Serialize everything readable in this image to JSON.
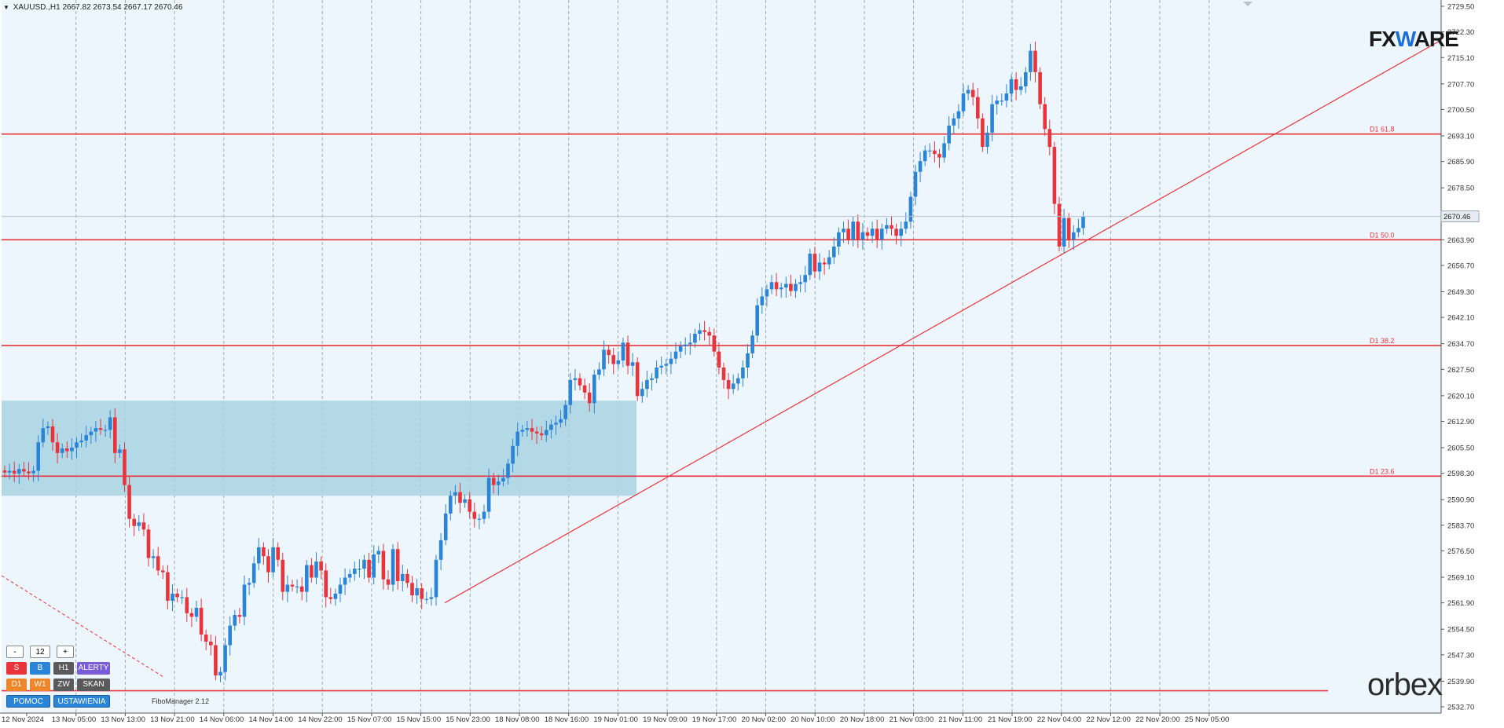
{
  "header": {
    "symbol": "XAUUSD.,H1",
    "ohlc": "2667.82 2673.54 2667.17 2670.46"
  },
  "brands": {
    "fxware_prefix": "FX",
    "fxware_w": "W",
    "fxware_suffix": "ARE",
    "orbex": "orbex"
  },
  "panel": {
    "minus": "-",
    "value": "12",
    "plus": "+",
    "s": "S",
    "b": "B",
    "h1": "H1",
    "alerty": "ALERTY",
    "d1": "D1",
    "w1": "W1",
    "zw": "ZW",
    "skan": "SKAN",
    "pomoc": "POMOC",
    "ustawienia": "USTAWIENIA",
    "fibomanager": "FiboManager 2.12"
  },
  "chart_data": {
    "type": "candlestick",
    "symbol": "XAUUSD.",
    "timeframe": "H1",
    "last_price": 2670.46,
    "ylim": [
      2532.7,
      2729.5
    ],
    "y_ticks": [
      "2729.50",
      "2722.30",
      "2715.10",
      "2707.70",
      "2700.50",
      "2693.10",
      "2685.90",
      "2678.50",
      "2671.30",
      "2663.90",
      "2656.70",
      "2649.30",
      "2642.10",
      "2634.70",
      "2627.50",
      "2620.10",
      "2612.90",
      "2605.50",
      "2598.30",
      "2590.90",
      "2583.70",
      "2576.50",
      "2569.10",
      "2561.90",
      "2554.50",
      "2547.30",
      "2539.90",
      "2532.70"
    ],
    "x_ticks": [
      "12 Nov 2024",
      "13 Nov 05:00",
      "13 Nov 13:00",
      "13 Nov 21:00",
      "14 Nov 06:00",
      "14 Nov 14:00",
      "14 Nov 22:00",
      "15 Nov 07:00",
      "15 Nov 15:00",
      "15 Nov 23:00",
      "18 Nov 08:00",
      "18 Nov 16:00",
      "19 Nov 01:00",
      "19 Nov 09:00",
      "19 Nov 17:00",
      "20 Nov 02:00",
      "20 Nov 10:00",
      "20 Nov 18:00",
      "21 Nov 03:00",
      "21 Nov 11:00",
      "21 Nov 19:00",
      "22 Nov 04:00",
      "22 Nov 12:00",
      "22 Nov 20:00",
      "25 Nov 05:00"
    ],
    "close": [
      2598.5,
      2599,
      2598.2,
      2599.5,
      2598.8,
      2598.3,
      2599,
      2607,
      2611,
      2611.5,
      2607,
      2604,
      2605.3,
      2604.5,
      2605.5,
      2607,
      2607.5,
      2609,
      2610,
      2611,
      2610.5,
      2610.5,
      2614,
      2604,
      2605,
      2595,
      2585.5,
      2583.5,
      2584.5,
      2582.5,
      2574.5,
      2575,
      2571,
      2570.5,
      2562.5,
      2564.5,
      2563.5,
      2563.5,
      2559,
      2558,
      2560.5,
      2553,
      2551,
      2550,
      2541.5,
      2542.5,
      2550,
      2555.5,
      2558.5,
      2558,
      2567,
      2567.5,
      2573,
      2577.5,
      2575,
      2570.5,
      2577.5,
      2574,
      2565,
      2567,
      2566.5,
      2566.5,
      2565,
      2572.5,
      2569,
      2573.5,
      2571,
      2563.5,
      2563,
      2564.5,
      2567,
      2569,
      2570,
      2571.5,
      2571.5,
      2574,
      2569,
      2575.5,
      2576.5,
      2568.5,
      2567,
      2577,
      2568,
      2570,
      2567.5,
      2564,
      2566,
      2563,
      2563,
      2563.5,
      2574,
      2579.5,
      2587,
      2592,
      2593,
      2590,
      2591,
      2587.5,
      2585.5,
      2585.5,
      2587.5,
      2597,
      2595,
      2596,
      2597,
      2601,
      2606,
      2610,
      2610.5,
      2611,
      2610,
      2609.5,
      2609,
      2610.5,
      2612,
      2612.5,
      2613.5,
      2617.5,
      2624.5,
      2625,
      2623,
      2621,
      2618,
      2626,
      2627.5,
      2633,
      2631.5,
      2629,
      2630,
      2635,
      2628.5,
      2629.5,
      2620,
      2622,
      2624.5,
      2625,
      2628,
      2628.5,
      2629,
      2630.5,
      2632.5,
      2634,
      2634.5,
      2635,
      2637.5,
      2638.5,
      2638,
      2637,
      2632.5,
      2628,
      2624.5,
      2622,
      2623.5,
      2625,
      2628,
      2632,
      2637,
      2645.5,
      2648,
      2650,
      2652,
      2650,
      2650.5,
      2651.5,
      2649.5,
      2651.5,
      2652,
      2654,
      2660,
      2655,
      2657.5,
      2657,
      2659,
      2662,
      2666,
      2667,
      2664,
      2669,
      2664,
      2666,
      2665,
      2667,
      2664,
      2667,
      2668,
      2667,
      2665,
      2667,
      2669,
      2676,
      2683,
      2686,
      2689,
      2689,
      2688,
      2687,
      2691,
      2696,
      2698,
      2700,
      2705,
      2706,
      2704,
      2698,
      2690,
      2694,
      2702,
      2703,
      2703,
      2705,
      2709,
      2706,
      2707,
      2711,
      2717,
      2711,
      2702,
      2695,
      2690,
      2674,
      2662,
      2670,
      2664,
      2666,
      2667.2,
      2670.46
    ],
    "fib_levels": [
      {
        "label": "D1 61.8",
        "price": 2693.6
      },
      {
        "label": "D1 50.0",
        "price": 2663.9
      },
      {
        "label": "D1 38.2",
        "price": 2634.2
      },
      {
        "label": "D1 23.6",
        "price": 2597.5
      },
      {
        "label": "",
        "price": 2537.2
      }
    ],
    "trendline": {
      "from": {
        "x_label": "15 Nov 23:00",
        "price": 2561.9
      },
      "to": {
        "x_label": "25 Nov 05:00",
        "price": 2712
      }
    },
    "zone": {
      "from_price": 2592.0,
      "to_price": 2618.7,
      "from_x": "12 Nov 2024",
      "to_x": "19 Nov 01:00"
    },
    "colors": {
      "background": "#eef6fd",
      "bull": "#2a84d8",
      "bear": "#e8343a",
      "fib_line": "#e8343a",
      "trendline": "#e8343a",
      "zone": "#a8d4e2",
      "grid": "#7f8c99",
      "price_tag": "#e6ecf2"
    },
    "grid": true
  }
}
